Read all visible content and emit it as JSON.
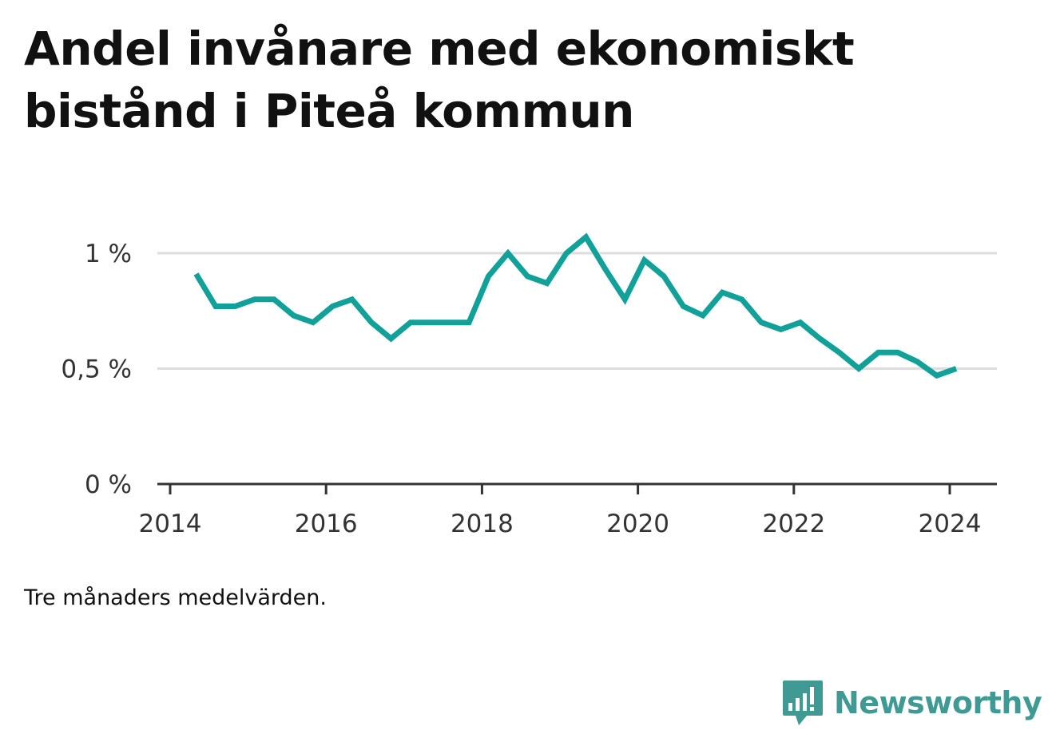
{
  "title": "Andel invånare med ekonomiskt bistånd i Piteå kommun",
  "note": "Tre månaders medelvärden.",
  "brand": {
    "name": "Newsworthy",
    "icon": "newsworthy-logo-icon",
    "color": "#3f9a93"
  },
  "colors": {
    "line": "#12a199",
    "grid": "#dddddd",
    "axis": "#333333",
    "ticks": "#333333"
  },
  "chart_data": {
    "type": "line",
    "title": "Andel invånare med ekonomiskt bistånd i Piteå kommun",
    "xlabel": "",
    "ylabel": "",
    "xlim": [
      2014,
      2024.6
    ],
    "ylim": [
      0,
      1.1
    ],
    "grid": true,
    "x_ticks": [
      2014,
      2016,
      2018,
      2020,
      2022,
      2024
    ],
    "x_tick_labels": [
      "2014",
      "2016",
      "2018",
      "2020",
      "2022",
      "2024"
    ],
    "y_ticks": [
      0,
      0.5,
      1
    ],
    "y_tick_labels": [
      "0 %",
      "0,5 %",
      "1 %"
    ],
    "series": [
      {
        "values": [
          {
            "x": "2014-05",
            "y": 0.91
          },
          {
            "x": "2014-08",
            "y": 0.77
          },
          {
            "x": "2014-11",
            "y": 0.77
          },
          {
            "x": "2015-02",
            "y": 0.8
          },
          {
            "x": "2015-05",
            "y": 0.8
          },
          {
            "x": "2015-08",
            "y": 0.73
          },
          {
            "x": "2015-11",
            "y": 0.7
          },
          {
            "x": "2016-02",
            "y": 0.77
          },
          {
            "x": "2016-05",
            "y": 0.8
          },
          {
            "x": "2016-08",
            "y": 0.7
          },
          {
            "x": "2016-11",
            "y": 0.63
          },
          {
            "x": "2017-02",
            "y": 0.7
          },
          {
            "x": "2017-05",
            "y": 0.7
          },
          {
            "x": "2017-08",
            "y": 0.7
          },
          {
            "x": "2017-11",
            "y": 0.7
          },
          {
            "x": "2018-02",
            "y": 0.9
          },
          {
            "x": "2018-05",
            "y": 1.0
          },
          {
            "x": "2018-08",
            "y": 0.9
          },
          {
            "x": "2018-11",
            "y": 0.87
          },
          {
            "x": "2019-02",
            "y": 1.0
          },
          {
            "x": "2019-05",
            "y": 1.07
          },
          {
            "x": "2019-08",
            "y": 0.93
          },
          {
            "x": "2019-11",
            "y": 0.8
          },
          {
            "x": "2020-02",
            "y": 0.97
          },
          {
            "x": "2020-05",
            "y": 0.9
          },
          {
            "x": "2020-08",
            "y": 0.77
          },
          {
            "x": "2020-11",
            "y": 0.73
          },
          {
            "x": "2021-02",
            "y": 0.83
          },
          {
            "x": "2021-05",
            "y": 0.8
          },
          {
            "x": "2021-08",
            "y": 0.7
          },
          {
            "x": "2021-11",
            "y": 0.67
          },
          {
            "x": "2022-02",
            "y": 0.7
          },
          {
            "x": "2022-05",
            "y": 0.63
          },
          {
            "x": "2022-08",
            "y": 0.57
          },
          {
            "x": "2022-11",
            "y": 0.5
          },
          {
            "x": "2023-02",
            "y": 0.57
          },
          {
            "x": "2023-05",
            "y": 0.57
          },
          {
            "x": "2023-08",
            "y": 0.53
          },
          {
            "x": "2023-11",
            "y": 0.47
          },
          {
            "x": "2024-02",
            "y": 0.5
          }
        ]
      }
    ]
  }
}
